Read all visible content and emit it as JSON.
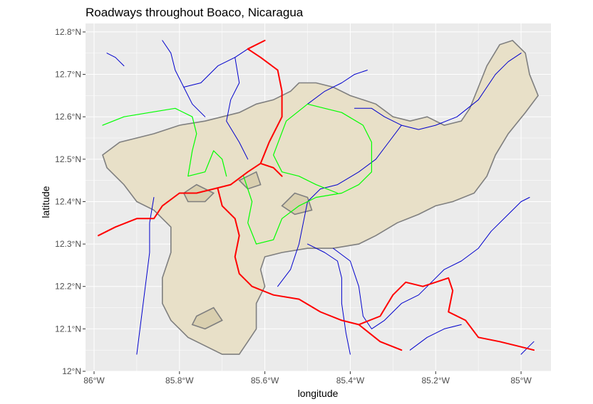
{
  "title": "Roadways throughout Boaco, Nicaragua",
  "xlabel": "longitude",
  "ylabel": "latitude",
  "x_ticks": [
    "86°W",
    "85.8°W",
    "85.6°W",
    "85.4°W",
    "85.2°W",
    "85°W"
  ],
  "y_ticks": [
    "12.8°N",
    "12.7°N",
    "12.6°N",
    "12.5°N",
    "12.4°N",
    "12.3°N",
    "12.2°N",
    "12.1°N",
    "12°N"
  ],
  "chart_data": {
    "type": "map",
    "title": "Roadways throughout Boaco, Nicaragua",
    "xlabel": "longitude",
    "ylabel": "latitude",
    "xlim": [
      -86.02,
      -84.93
    ],
    "ylim": [
      12.0,
      12.82
    ],
    "grid": true,
    "colors": {
      "panel": "#ebebeb",
      "grid": "#ffffff",
      "region_fill": "#e8e0c8",
      "region_border": "#7f7f7f",
      "primary_road": "#ff0000",
      "secondary_road": "#00ff00",
      "minor_road": "#0000cd"
    },
    "region": [
      [
        -85.98,
        12.51
      ],
      [
        -85.94,
        12.54
      ],
      [
        -85.9,
        12.55
      ],
      [
        -85.86,
        12.56
      ],
      [
        -85.8,
        12.58
      ],
      [
        -85.74,
        12.59
      ],
      [
        -85.7,
        12.6
      ],
      [
        -85.66,
        12.61
      ],
      [
        -85.62,
        12.63
      ],
      [
        -85.58,
        12.64
      ],
      [
        -85.54,
        12.66
      ],
      [
        -85.52,
        12.68
      ],
      [
        -85.48,
        12.68
      ],
      [
        -85.44,
        12.67
      ],
      [
        -85.4,
        12.65
      ],
      [
        -85.37,
        12.64
      ],
      [
        -85.34,
        12.63
      ],
      [
        -85.3,
        12.6
      ],
      [
        -85.26,
        12.59
      ],
      [
        -85.22,
        12.6
      ],
      [
        -85.18,
        12.58
      ],
      [
        -85.14,
        12.59
      ],
      [
        -85.12,
        12.62
      ],
      [
        -85.1,
        12.67
      ],
      [
        -85.08,
        12.72
      ],
      [
        -85.05,
        12.77
      ],
      [
        -85.02,
        12.78
      ],
      [
        -84.99,
        12.75
      ],
      [
        -84.98,
        12.7
      ],
      [
        -84.96,
        12.65
      ],
      [
        -84.99,
        12.61
      ],
      [
        -85.03,
        12.56
      ],
      [
        -85.06,
        12.51
      ],
      [
        -85.08,
        12.46
      ],
      [
        -85.11,
        12.42
      ],
      [
        -85.16,
        12.4
      ],
      [
        -85.2,
        12.39
      ],
      [
        -85.24,
        12.37
      ],
      [
        -85.29,
        12.35
      ],
      [
        -85.34,
        12.32
      ],
      [
        -85.38,
        12.3
      ],
      [
        -85.44,
        12.29
      ],
      [
        -85.5,
        12.29
      ],
      [
        -85.56,
        12.28
      ],
      [
        -85.6,
        12.27
      ],
      [
        -85.61,
        12.24
      ],
      [
        -85.6,
        12.2
      ],
      [
        -85.62,
        12.16
      ],
      [
        -85.62,
        12.1
      ],
      [
        -85.64,
        12.07
      ],
      [
        -85.66,
        12.04
      ],
      [
        -85.7,
        12.04
      ],
      [
        -85.74,
        12.06
      ],
      [
        -85.78,
        12.08
      ],
      [
        -85.82,
        12.12
      ],
      [
        -85.84,
        12.16
      ],
      [
        -85.84,
        12.22
      ],
      [
        -85.82,
        12.28
      ],
      [
        -85.82,
        12.34
      ],
      [
        -85.86,
        12.38
      ],
      [
        -85.9,
        12.4
      ],
      [
        -85.93,
        12.44
      ],
      [
        -85.97,
        12.48
      ]
    ],
    "inner_boundaries": [
      [
        [
          -85.79,
          12.42
        ],
        [
          -85.76,
          12.44
        ],
        [
          -85.72,
          12.42
        ],
        [
          -85.74,
          12.4
        ],
        [
          -85.78,
          12.4
        ]
      ],
      [
        [
          -85.66,
          12.45
        ],
        [
          -85.62,
          12.47
        ],
        [
          -85.61,
          12.44
        ],
        [
          -85.64,
          12.43
        ]
      ],
      [
        [
          -85.53,
          12.42
        ],
        [
          -85.5,
          12.41
        ],
        [
          -85.49,
          12.38
        ],
        [
          -85.53,
          12.37
        ],
        [
          -85.56,
          12.39
        ]
      ],
      [
        [
          -85.76,
          12.13
        ],
        [
          -85.72,
          12.15
        ],
        [
          -85.7,
          12.12
        ],
        [
          -85.74,
          12.1
        ],
        [
          -85.77,
          12.11
        ]
      ]
    ],
    "roads": [
      {
        "class": "primary",
        "points": [
          [
            -85.99,
            12.32
          ],
          [
            -85.95,
            12.34
          ],
          [
            -85.9,
            12.36
          ],
          [
            -85.86,
            12.36
          ],
          [
            -85.84,
            12.39
          ],
          [
            -85.8,
            12.42
          ],
          [
            -85.76,
            12.42
          ],
          [
            -85.72,
            12.43
          ],
          [
            -85.68,
            12.44
          ],
          [
            -85.64,
            12.47
          ],
          [
            -85.61,
            12.49
          ],
          [
            -85.58,
            12.48
          ],
          [
            -85.56,
            12.46
          ]
        ]
      },
      {
        "class": "primary",
        "points": [
          [
            -85.61,
            12.49
          ],
          [
            -85.59,
            12.54
          ],
          [
            -85.56,
            12.6
          ],
          [
            -85.56,
            12.66
          ],
          [
            -85.57,
            12.71
          ],
          [
            -85.61,
            12.74
          ],
          [
            -85.64,
            12.76
          ],
          [
            -85.6,
            12.78
          ]
        ]
      },
      {
        "class": "primary",
        "points": [
          [
            -85.71,
            12.43
          ],
          [
            -85.7,
            12.39
          ],
          [
            -85.67,
            12.36
          ],
          [
            -85.66,
            12.32
          ],
          [
            -85.67,
            12.27
          ],
          [
            -85.66,
            12.23
          ],
          [
            -85.63,
            12.2
          ],
          [
            -85.58,
            12.18
          ],
          [
            -85.52,
            12.17
          ],
          [
            -85.47,
            12.14
          ],
          [
            -85.42,
            12.12
          ],
          [
            -85.38,
            12.11
          ],
          [
            -85.33,
            12.07
          ],
          [
            -85.28,
            12.05
          ]
        ]
      },
      {
        "class": "primary",
        "points": [
          [
            -85.38,
            12.11
          ],
          [
            -85.33,
            12.13
          ],
          [
            -85.3,
            12.18
          ],
          [
            -85.27,
            12.21
          ],
          [
            -85.23,
            12.2
          ],
          [
            -85.2,
            12.21
          ],
          [
            -85.17,
            12.22
          ],
          [
            -85.16,
            12.19
          ],
          [
            -85.17,
            12.14
          ],
          [
            -85.13,
            12.12
          ],
          [
            -85.1,
            12.08
          ],
          [
            -85.05,
            12.07
          ],
          [
            -85.01,
            12.06
          ],
          [
            -84.97,
            12.05
          ]
        ]
      },
      {
        "class": "secondary",
        "points": [
          [
            -85.98,
            12.58
          ],
          [
            -85.93,
            12.6
          ],
          [
            -85.87,
            12.61
          ],
          [
            -85.81,
            12.62
          ],
          [
            -85.77,
            12.6
          ],
          [
            -85.76,
            12.56
          ],
          [
            -85.77,
            12.52
          ],
          [
            -85.78,
            12.46
          ],
          [
            -85.74,
            12.47
          ],
          [
            -85.72,
            12.52
          ],
          [
            -85.7,
            12.5
          ],
          [
            -85.69,
            12.46
          ]
        ]
      },
      {
        "class": "secondary",
        "points": [
          [
            -85.65,
            12.46
          ],
          [
            -85.63,
            12.4
          ],
          [
            -85.64,
            12.35
          ],
          [
            -85.62,
            12.3
          ],
          [
            -85.58,
            12.31
          ],
          [
            -85.56,
            12.36
          ],
          [
            -85.52,
            12.39
          ],
          [
            -85.48,
            12.41
          ],
          [
            -85.42,
            12.42
          ],
          [
            -85.38,
            12.44
          ],
          [
            -85.35,
            12.47
          ],
          [
            -85.35,
            12.54
          ],
          [
            -85.37,
            12.58
          ],
          [
            -85.42,
            12.61
          ],
          [
            -85.46,
            12.62
          ],
          [
            -85.5,
            12.63
          ],
          [
            -85.55,
            12.59
          ],
          [
            -85.58,
            12.51
          ],
          [
            -85.56,
            12.47
          ],
          [
            -85.52,
            12.46
          ],
          [
            -85.48,
            12.44
          ],
          [
            -85.43,
            12.42
          ]
        ]
      },
      {
        "class": "minor",
        "points": [
          [
            -85.97,
            12.75
          ],
          [
            -85.95,
            12.74
          ],
          [
            -85.93,
            12.72
          ]
        ]
      },
      {
        "class": "minor",
        "points": [
          [
            -85.84,
            12.78
          ],
          [
            -85.82,
            12.75
          ],
          [
            -85.81,
            12.71
          ],
          [
            -85.79,
            12.67
          ],
          [
            -85.77,
            12.63
          ],
          [
            -85.74,
            12.6
          ]
        ]
      },
      {
        "class": "minor",
        "points": [
          [
            -85.79,
            12.67
          ],
          [
            -85.75,
            12.68
          ],
          [
            -85.71,
            12.72
          ],
          [
            -85.67,
            12.74
          ],
          [
            -85.64,
            12.76
          ]
        ]
      },
      {
        "class": "minor",
        "points": [
          [
            -85.67,
            12.74
          ],
          [
            -85.66,
            12.68
          ],
          [
            -85.68,
            12.64
          ],
          [
            -85.69,
            12.59
          ],
          [
            -85.66,
            12.54
          ],
          [
            -85.64,
            12.5
          ]
        ]
      },
      {
        "class": "minor",
        "points": [
          [
            -85.5,
            12.63
          ],
          [
            -85.46,
            12.66
          ],
          [
            -85.42,
            12.68
          ],
          [
            -85.39,
            12.7
          ],
          [
            -85.36,
            12.71
          ]
        ]
      },
      {
        "class": "minor",
        "points": [
          [
            -85.39,
            12.62
          ],
          [
            -85.35,
            12.62
          ],
          [
            -85.32,
            12.6
          ],
          [
            -85.28,
            12.58
          ],
          [
            -85.24,
            12.57
          ],
          [
            -85.2,
            12.58
          ],
          [
            -85.15,
            12.6
          ],
          [
            -85.1,
            12.64
          ],
          [
            -85.06,
            12.7
          ],
          [
            -85.03,
            12.73
          ],
          [
            -85.0,
            12.75
          ]
        ]
      },
      {
        "class": "minor",
        "points": [
          [
            -85.28,
            12.58
          ],
          [
            -85.31,
            12.54
          ],
          [
            -85.34,
            12.5
          ],
          [
            -85.38,
            12.47
          ],
          [
            -85.43,
            12.44
          ],
          [
            -85.47,
            12.43
          ],
          [
            -85.5,
            12.4
          ],
          [
            -85.51,
            12.35
          ],
          [
            -85.52,
            12.3
          ],
          [
            -85.54,
            12.24
          ],
          [
            -85.57,
            12.2
          ]
        ]
      },
      {
        "class": "minor",
        "points": [
          [
            -85.86,
            12.41
          ],
          [
            -85.87,
            12.35
          ],
          [
            -85.87,
            12.28
          ],
          [
            -85.88,
            12.2
          ],
          [
            -85.89,
            12.12
          ],
          [
            -85.9,
            12.04
          ]
        ]
      },
      {
        "class": "minor",
        "points": [
          [
            -85.5,
            12.3
          ],
          [
            -85.46,
            12.28
          ],
          [
            -85.43,
            12.26
          ],
          [
            -85.42,
            12.22
          ],
          [
            -85.42,
            12.16
          ],
          [
            -85.41,
            12.09
          ],
          [
            -85.4,
            12.04
          ]
        ]
      },
      {
        "class": "minor",
        "points": [
          [
            -85.44,
            12.29
          ],
          [
            -85.4,
            12.26
          ],
          [
            -85.38,
            12.2
          ],
          [
            -85.37,
            12.13
          ],
          [
            -85.35,
            12.1
          ],
          [
            -85.32,
            12.12
          ],
          [
            -85.28,
            12.16
          ],
          [
            -85.24,
            12.18
          ],
          [
            -85.21,
            12.21
          ],
          [
            -85.18,
            12.24
          ],
          [
            -85.14,
            12.26
          ],
          [
            -85.1,
            12.29
          ],
          [
            -85.07,
            12.33
          ],
          [
            -85.03,
            12.37
          ],
          [
            -85.0,
            12.4
          ],
          [
            -84.98,
            12.41
          ]
        ]
      },
      {
        "class": "minor",
        "points": [
          [
            -85.26,
            12.05
          ],
          [
            -85.22,
            12.08
          ],
          [
            -85.18,
            12.1
          ],
          [
            -85.14,
            12.11
          ]
        ]
      },
      {
        "class": "minor",
        "points": [
          [
            -85.0,
            12.04
          ],
          [
            -84.98,
            12.06
          ],
          [
            -84.97,
            12.07
          ]
        ]
      }
    ]
  }
}
